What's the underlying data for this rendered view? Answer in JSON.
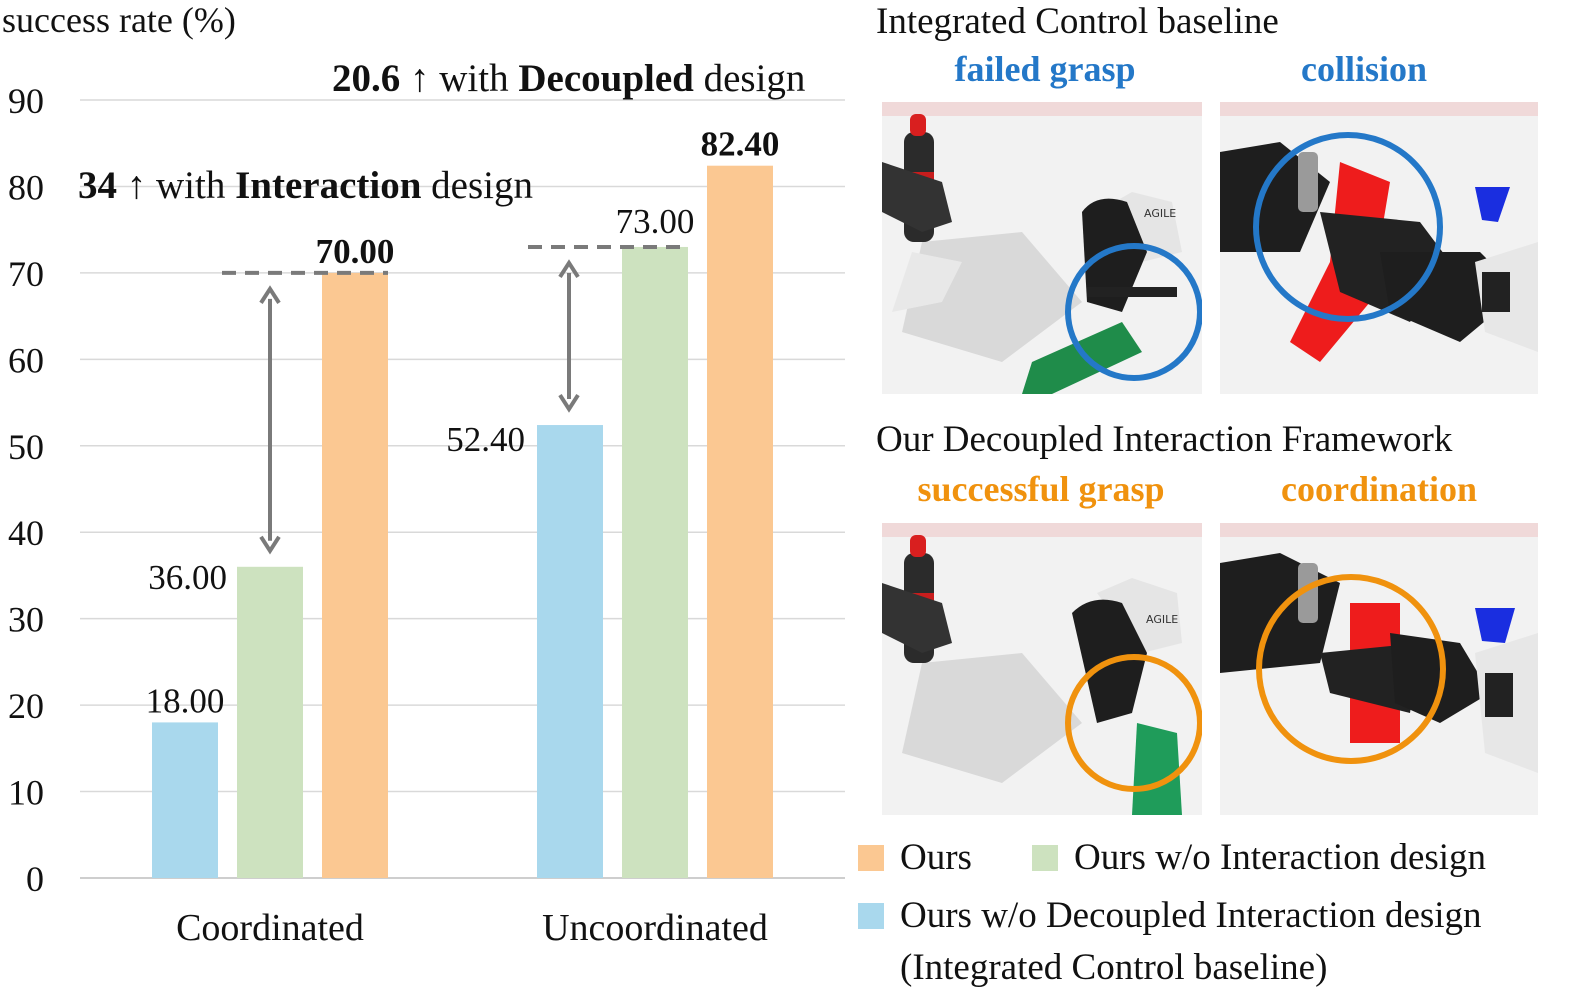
{
  "chart_data": {
    "type": "bar",
    "ylabel": "success rate (%)",
    "ylim": [
      0,
      90
    ],
    "yticks": [
      0,
      10,
      20,
      30,
      40,
      50,
      60,
      70,
      80,
      90
    ],
    "grid": true,
    "categories": [
      "Coordinated",
      "Uncoordinated"
    ],
    "series": [
      {
        "name": "Ours w/o Decoupled Interaction design (Integrated Control baseline)",
        "color": "#a9d8ed",
        "values": [
          18.0,
          52.4
        ],
        "labels": [
          "18.00",
          "52.40"
        ]
      },
      {
        "name": "Ours w/o Interaction design",
        "color": "#cde2bf",
        "values": [
          36.0,
          73.0
        ],
        "labels": [
          "36.00",
          "73.00"
        ]
      },
      {
        "name": "Ours",
        "color": "#fbc892",
        "values": [
          70.0,
          82.4
        ],
        "labels": [
          "70.00",
          "82.40"
        ]
      }
    ],
    "annotations": {
      "interaction": {
        "value": "34",
        "arrow": "↑",
        "pre": "with",
        "bold": "Interaction",
        "post": "design",
        "from": 36.0,
        "to": 70.0
      },
      "decoupled": {
        "value": "20.6",
        "arrow": "↑",
        "pre": "with",
        "bold": "Decoupled",
        "post": "design",
        "from": 52.4,
        "to": 73.0
      }
    }
  },
  "panels": {
    "baseline_title": "Integrated Control baseline",
    "ours_title": "Our Decoupled Interaction Framework",
    "captions": {
      "failed_grasp": "failed grasp",
      "collision": "collision",
      "successful_grasp": "successful grasp",
      "coordination": "coordination"
    },
    "robot_text": "AGILE",
    "colors": {
      "baseline": "#2478c8",
      "ours": "#f0920e"
    }
  },
  "legend": {
    "ours": "Ours",
    "no_interaction": "Ours w/o Interaction design",
    "no_decoupled": "Ours w/o Decoupled Interaction design",
    "no_decoupled_sub": "(Integrated Control baseline)"
  }
}
